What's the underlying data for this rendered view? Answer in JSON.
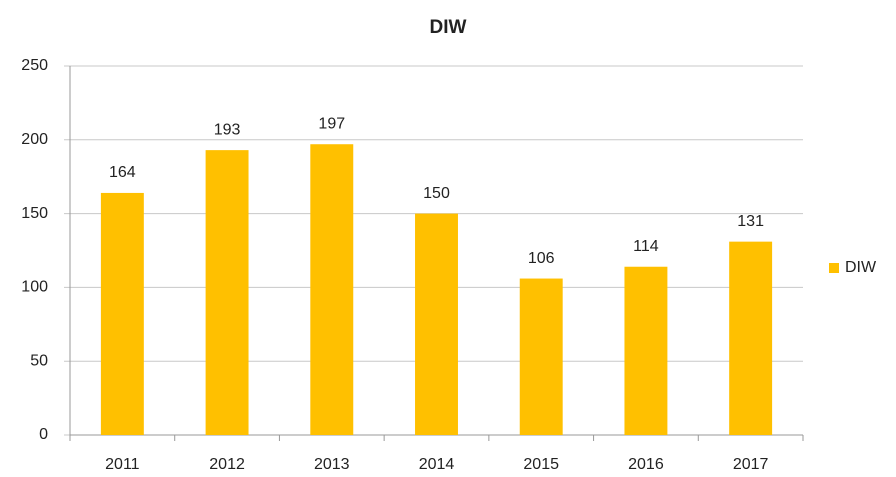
{
  "chart_data": {
    "type": "bar",
    "title": "DIW",
    "categories": [
      "2011",
      "2012",
      "2013",
      "2014",
      "2015",
      "2016",
      "2017"
    ],
    "series": [
      {
        "name": "DIW",
        "color": "#ffc000",
        "values": [
          164,
          193,
          197,
          150,
          106,
          114,
          131
        ]
      }
    ],
    "ylim": [
      0,
      250
    ],
    "yticks": [
      0,
      50,
      100,
      150,
      200,
      250
    ],
    "grid": true,
    "legend": "right"
  }
}
